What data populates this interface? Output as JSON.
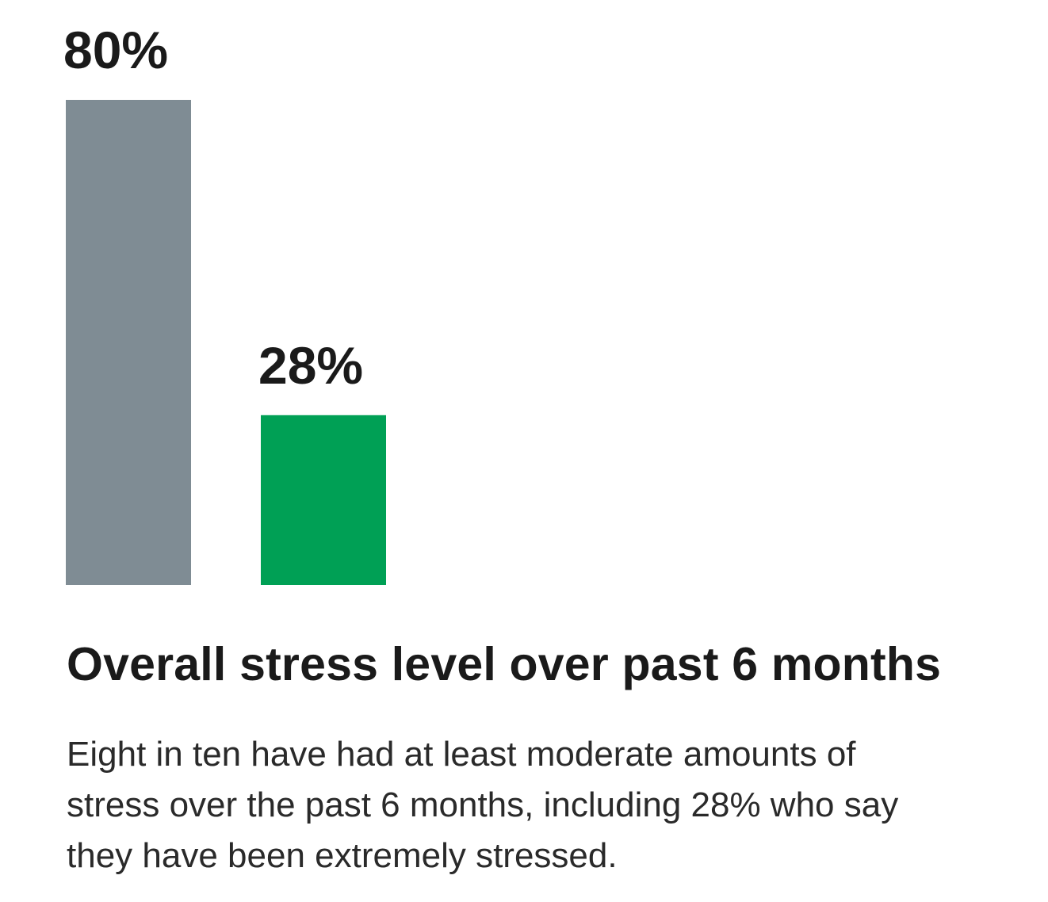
{
  "chart_data": {
    "type": "bar",
    "title": "Overall stress level over past 6 months",
    "caption": "Eight in ten have had at least moderate amounts of stress over the past 6 months, including 28% who say they have been extremely stressed.",
    "categories": [
      "",
      ""
    ],
    "values": [
      80,
      28
    ],
    "value_labels": [
      "80%",
      "28%"
    ],
    "colors": [
      "#7f8c94",
      "#00a055"
    ],
    "ylim": [
      0,
      100
    ],
    "grid": false,
    "legend": "none"
  }
}
